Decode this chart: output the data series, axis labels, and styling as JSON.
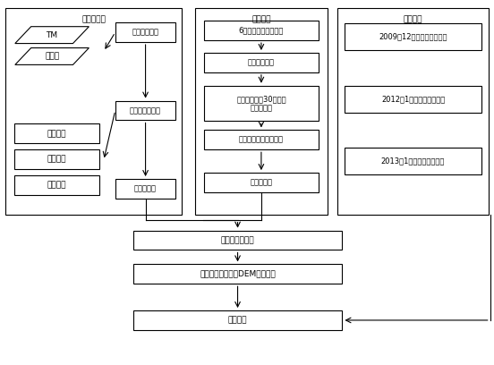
{
  "bg_color": "#ffffff",
  "box_edge_color": "#000000",
  "box_face_color": "#ffffff",
  "font_size": 6.5,
  "section1_title": "水边线提取",
  "section2_title": "潮位数据",
  "section3_title": "实测数据",
  "tm_label": "TM",
  "env_label": "环境星",
  "col2_labels": [
    "遥感影像选取",
    "遥感影像预处理",
    "水边线提取"
  ],
  "left_group2_labels": [
    "几何校正",
    "波段选取",
    "图像增强"
  ],
  "center_labels": [
    "6个站的实时测位数据",
    "测位数据修编",
    "水文站连线扖30米等间\n距离散成点",
    "选取插值方法进行插值",
    "同步水位线"
  ],
  "right_labels": [
    "2009年12月条子泥实测数据",
    "2012年1月条子泥实测数据",
    "2013年1月条子泥实测数据"
  ],
  "bottom_labels": [
    "水边线高程推算",
    "插值结果生成滩涂DEM、等高线",
    "精度检验"
  ]
}
